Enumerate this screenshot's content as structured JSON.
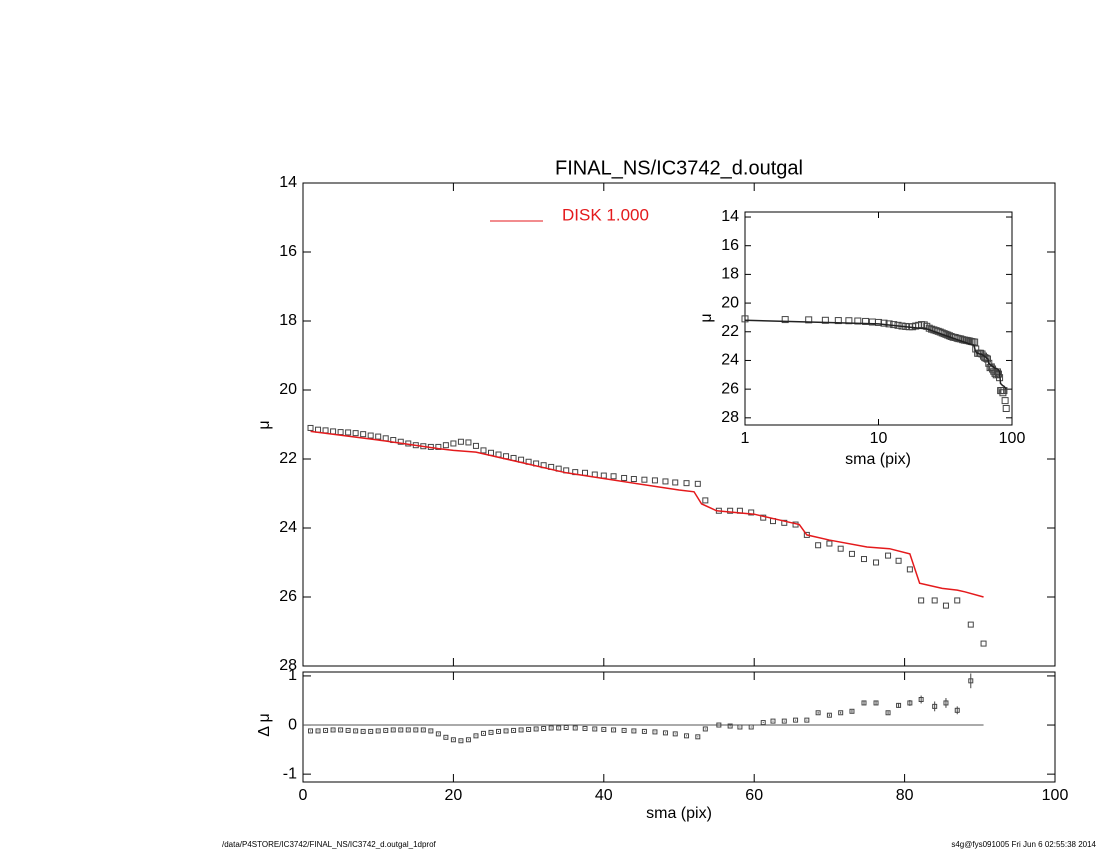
{
  "chart_data": [
    {
      "type": "scatter",
      "title": "FINAL_NS/IC3742_d.outgal",
      "y_label": "μ",
      "xlim": [
        0,
        100
      ],
      "xticks": [
        0,
        20,
        40,
        60,
        80,
        100
      ],
      "show_xtick_labels": false,
      "ylim": [
        28,
        14
      ],
      "yticks": [
        14,
        16,
        18,
        20,
        22,
        24,
        26,
        28
      ],
      "series": [
        {
          "marker": "square",
          "color": "#444444",
          "x": [
            1,
            2,
            3,
            4,
            5,
            6,
            7,
            8,
            9,
            10,
            11,
            12,
            13,
            14,
            15,
            16,
            17,
            18,
            19,
            20,
            21,
            22,
            23,
            24,
            25,
            26,
            27,
            28,
            29,
            30,
            31,
            32,
            33,
            34,
            35,
            36.2,
            37.5,
            38.8,
            40,
            41.3,
            42.7,
            44,
            45.4,
            46.8,
            48.2,
            49.5,
            51,
            52.5,
            53.5,
            55.3,
            56.8,
            58.1,
            59.6,
            61.2,
            62.5,
            64,
            65.5,
            67,
            68.5,
            70,
            71.5,
            73,
            74.6,
            76.2,
            77.8,
            79.2,
            80.7,
            82.2,
            84,
            85.5,
            87,
            88.8,
            90.5
          ],
          "values": [
            21.1,
            21.15,
            21.17,
            21.2,
            21.22,
            21.23,
            21.25,
            21.28,
            21.32,
            21.35,
            21.4,
            21.45,
            21.5,
            21.55,
            21.6,
            21.63,
            21.65,
            21.65,
            21.6,
            21.55,
            21.5,
            21.52,
            21.62,
            21.75,
            21.82,
            21.87,
            21.92,
            21.97,
            22.02,
            22.08,
            22.13,
            22.18,
            22.23,
            22.28,
            22.33,
            22.38,
            22.4,
            22.45,
            22.48,
            22.5,
            22.55,
            22.58,
            22.6,
            22.62,
            22.65,
            22.68,
            22.7,
            22.72,
            23.2,
            23.5,
            23.5,
            23.5,
            23.55,
            23.7,
            23.8,
            23.85,
            23.9,
            24.2,
            24.5,
            24.45,
            24.6,
            24.75,
            24.9,
            25.0,
            24.8,
            24.95,
            25.2,
            26.1,
            26.1,
            26.25,
            26.1,
            26.8,
            27.35
          ]
        },
        {
          "name": "DISK  1.000",
          "color": "#e41a1c",
          "line": true,
          "x": [
            1,
            10,
            18,
            20,
            23,
            35,
            50,
            52,
            53,
            55,
            60,
            65,
            66,
            67,
            70,
            75,
            78,
            80.7,
            82,
            85,
            87,
            88,
            90.5
          ],
          "values": [
            21.2,
            21.45,
            21.7,
            21.75,
            21.8,
            22.4,
            22.9,
            22.95,
            23.3,
            23.5,
            23.6,
            23.85,
            23.9,
            24.2,
            24.35,
            24.55,
            24.6,
            24.75,
            25.6,
            25.75,
            25.8,
            25.85,
            26.0
          ]
        }
      ]
    },
    {
      "type": "scatter",
      "x_label": "sma (pix)",
      "y_label": "Δ μ",
      "xlim": [
        0,
        100
      ],
      "xticks": [
        0,
        20,
        40,
        60,
        80,
        100
      ],
      "show_xtick_labels": true,
      "ylim": [
        -1.16,
        1.08
      ],
      "yticks": [
        -1,
        0,
        1
      ],
      "hline": {
        "y": 0,
        "x": [
          0,
          90.5
        ]
      },
      "series": [
        {
          "marker": "square",
          "color": "#444444",
          "x": [
            1,
            2,
            3,
            4,
            5,
            6,
            7,
            8,
            9,
            10,
            11,
            12,
            13,
            14,
            15,
            16,
            17,
            18,
            19,
            20,
            21,
            22,
            23,
            24,
            25,
            26,
            27,
            28,
            29,
            30,
            31,
            32,
            33,
            34,
            35,
            36.2,
            37.5,
            38.8,
            40,
            41.3,
            42.7,
            44,
            45.4,
            46.8,
            48.2,
            49.5,
            51,
            52.5,
            53.5,
            55.3,
            56.8,
            58.1,
            59.6,
            61.2,
            62.5,
            64,
            65.5,
            67,
            68.5,
            70,
            71.5,
            73,
            74.6,
            76.2,
            77.8,
            79.2,
            80.7,
            82.2,
            84,
            85.5,
            87,
            88.8,
            90.5
          ],
          "values": [
            -0.12,
            -0.12,
            -0.11,
            -0.1,
            -0.1,
            -0.11,
            -0.12,
            -0.13,
            -0.13,
            -0.12,
            -0.11,
            -0.1,
            -0.1,
            -0.1,
            -0.1,
            -0.1,
            -0.12,
            -0.18,
            -0.25,
            -0.3,
            -0.32,
            -0.3,
            -0.22,
            -0.17,
            -0.15,
            -0.13,
            -0.12,
            -0.11,
            -0.1,
            -0.09,
            -0.08,
            -0.07,
            -0.06,
            -0.06,
            -0.05,
            -0.06,
            -0.07,
            -0.08,
            -0.09,
            -0.1,
            -0.11,
            -0.12,
            -0.13,
            -0.14,
            -0.16,
            -0.18,
            -0.22,
            -0.24,
            -0.08,
            0,
            -0.02,
            -0.04,
            -0.04,
            0.05,
            0.08,
            0.08,
            0.1,
            0.1,
            0.25,
            0.2,
            0.25,
            0.28,
            0.45,
            0.45,
            0.25,
            0.4,
            0.45,
            0.52,
            0.38,
            0.45,
            0.3,
            0.9,
            null
          ],
          "errors": [
            0.01,
            0.01,
            0.01,
            0.01,
            0.01,
            0.01,
            0.01,
            0.01,
            0.01,
            0.01,
            0.01,
            0.01,
            0.01,
            0.01,
            0.01,
            0.01,
            0.01,
            0.01,
            0.01,
            0.01,
            0.01,
            0.01,
            0.01,
            0.01,
            0.01,
            0.01,
            0.01,
            0.01,
            0.01,
            0.01,
            0.01,
            0.01,
            0.01,
            0.01,
            0.01,
            0.01,
            0.01,
            0.01,
            0.01,
            0.01,
            0.01,
            0.01,
            0.01,
            0.01,
            0.01,
            0.01,
            0.01,
            0.01,
            0.01,
            0.01,
            0.01,
            0.01,
            0.01,
            0.01,
            0.01,
            0.01,
            0.01,
            0.01,
            0.02,
            0.02,
            0.02,
            0.03,
            0.04,
            0.04,
            0.03,
            0.05,
            0.06,
            0.08,
            0.1,
            0.1,
            0.08,
            0.15,
            null
          ]
        }
      ]
    },
    {
      "type": "scatter",
      "x_label": "sma (pix)",
      "y_label": "μ",
      "xlog": true,
      "xlim": [
        1,
        100
      ],
      "xticks": [
        1,
        10,
        100
      ],
      "show_xtick_labels": true,
      "ylim": [
        28.5,
        13.65
      ],
      "yticks": [
        14,
        16,
        18,
        20,
        22,
        24,
        26,
        28
      ],
      "series": [
        {
          "marker": "square",
          "color": "#444444",
          "x": [
            1,
            2,
            3,
            4,
            5,
            6,
            7,
            8,
            9,
            10,
            11,
            12,
            13,
            14,
            15,
            16,
            17,
            18,
            19,
            20,
            21,
            22,
            23,
            24,
            25,
            26,
            27,
            28,
            29,
            30,
            31,
            32,
            33,
            34,
            35,
            36.2,
            37.5,
            38.8,
            40,
            41.3,
            42.7,
            44,
            45.4,
            46.8,
            48.2,
            49.5,
            51,
            52.5,
            53.5,
            55.3,
            56.8,
            58.1,
            59.6,
            61.2,
            62.5,
            64,
            65.5,
            67,
            68.5,
            70,
            71.5,
            73,
            74.6,
            76.2,
            77.8,
            79.2,
            80.7,
            82.2,
            84,
            85.5,
            87,
            88.8,
            90.5
          ],
          "values": [
            21.1,
            21.15,
            21.17,
            21.2,
            21.22,
            21.23,
            21.25,
            21.28,
            21.32,
            21.35,
            21.4,
            21.45,
            21.5,
            21.55,
            21.6,
            21.63,
            21.65,
            21.65,
            21.6,
            21.55,
            21.5,
            21.52,
            21.62,
            21.75,
            21.82,
            21.87,
            21.92,
            21.97,
            22.02,
            22.08,
            22.13,
            22.18,
            22.23,
            22.28,
            22.33,
            22.38,
            22.4,
            22.45,
            22.48,
            22.5,
            22.55,
            22.58,
            22.6,
            22.62,
            22.65,
            22.68,
            22.7,
            22.72,
            23.2,
            23.5,
            23.5,
            23.5,
            23.55,
            23.7,
            23.8,
            23.85,
            23.9,
            24.2,
            24.5,
            24.45,
            24.6,
            24.75,
            24.9,
            25.0,
            24.8,
            24.95,
            25.2,
            26.1,
            26.1,
            26.25,
            26.1,
            26.8,
            27.35
          ]
        },
        {
          "color": "#222222",
          "line": true,
          "x": [
            1,
            10,
            18,
            20,
            23,
            35,
            50,
            52,
            53,
            55,
            60,
            65,
            66,
            67,
            70,
            75,
            78,
            80.7,
            82,
            85,
            87,
            88,
            90.5
          ],
          "values": [
            21.2,
            21.45,
            21.7,
            21.75,
            21.8,
            22.4,
            22.9,
            22.95,
            23.3,
            23.5,
            23.6,
            23.85,
            23.9,
            24.2,
            24.35,
            24.55,
            24.6,
            24.75,
            25.6,
            25.75,
            25.8,
            25.85,
            26.0
          ]
        }
      ]
    }
  ],
  "footer": {
    "left": "/data/P4STORE/IC3742/FINAL_NS/IC3742_d.outgal_1dprof",
    "right": "s4g@fys091005  Fri Jun  6 02:55:38 2014"
  }
}
